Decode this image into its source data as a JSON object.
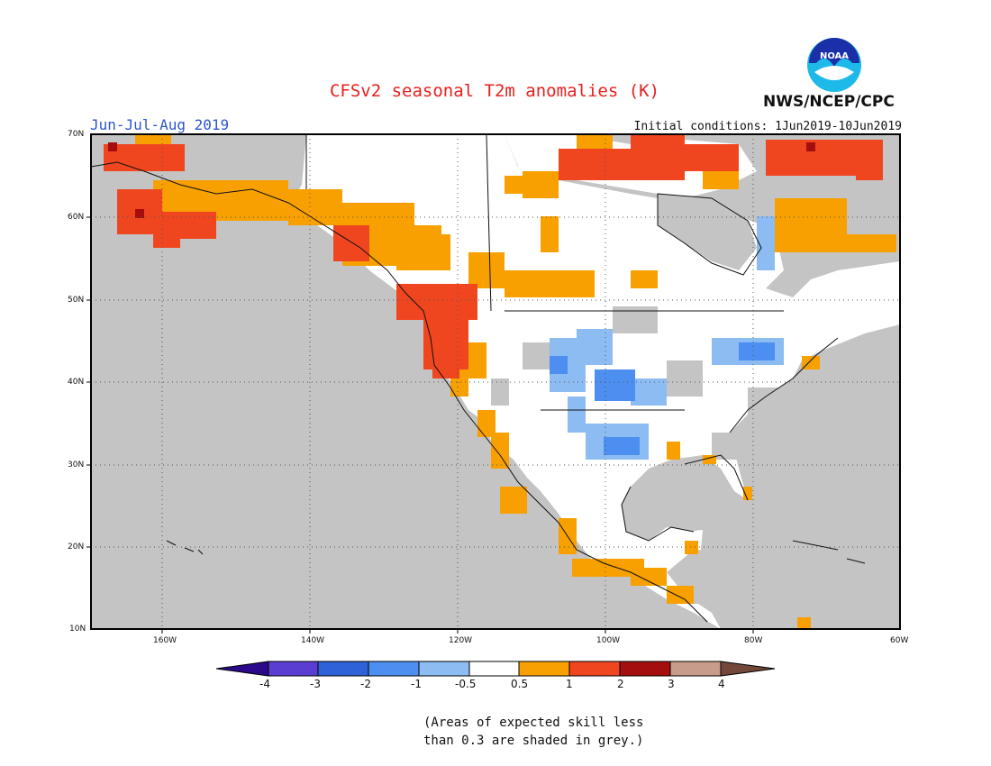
{
  "title": "CFSv2 seasonal T2m anomalies (K)",
  "period": "Jun-Jul-Aug 2019",
  "initial_conditions": "Initial conditions: 1Jun2019-10Jun2019",
  "organization": "NWS/NCEP/CPC",
  "logo_text": "NOAA",
  "lat_labels": [
    "70N",
    "60N",
    "50N",
    "40N",
    "30N",
    "20N",
    "10N"
  ],
  "lon_labels": [
    "160W",
    "140W",
    "120W",
    "100W",
    "80W",
    "60W"
  ],
  "colorbar": {
    "labels": [
      "-4",
      "-3",
      "-2",
      "-1",
      "-0.5",
      "0.5",
      "1",
      "2",
      "3",
      "4"
    ],
    "colors": {
      "below_-4": "#2a0a8a",
      "-4_-3": "#5a3ed1",
      "-3_-2": "#2f62d6",
      "-2_-1": "#4c8ff0",
      "-1_-0.5": "#8cbcf2",
      "-0.5_0.5": "#ffffff",
      "0.5_1": "#f7a000",
      "1_2": "#f04620",
      "2_3": "#a50e0e",
      "3_4": "#c79c8a",
      "above_4": "#73483a"
    }
  },
  "colors": {
    "land_white": "#ffffff",
    "grey_skill": "#c4c4c4",
    "ocean_grey": "#c4c4c4"
  },
  "note_line1": "(Areas of expected skill less",
  "note_line2": "than 0.3 are shaded in grey.)"
}
